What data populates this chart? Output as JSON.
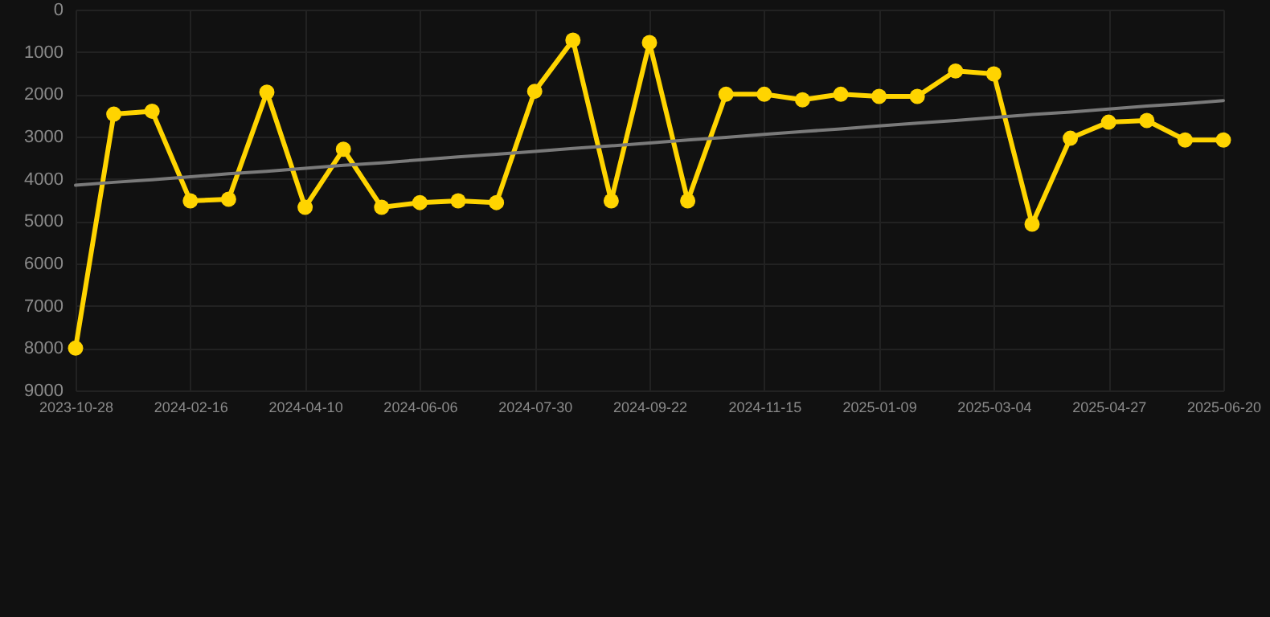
{
  "chart_data": {
    "type": "line",
    "categories": [
      "2023-10-28",
      null,
      null,
      "2024-02-16",
      null,
      null,
      "2024-04-10",
      null,
      null,
      "2024-06-06",
      null,
      null,
      "2024-07-30",
      null,
      null,
      "2024-09-22",
      null,
      null,
      "2024-11-15",
      null,
      null,
      "2025-01-09",
      null,
      null,
      "2025-03-04",
      null,
      null,
      "2025-04-27",
      null,
      null,
      "2025-06-20"
    ],
    "series": [
      {
        "color": "#ffd400",
        "marker": "circle",
        "values": [
          8000,
          2470,
          2400,
          4520,
          4480,
          1950,
          4670,
          3300,
          4670,
          4560,
          4520,
          4560,
          1930,
          720,
          4520,
          780,
          4520,
          2000,
          2000,
          2130,
          2000,
          2050,
          2050,
          1450,
          1520,
          5070,
          3040,
          2660,
          2620,
          3080,
          3080
        ]
      },
      {
        "type": "line",
        "color": "#7a7a7a",
        "marker": "none",
        "values": [
          4150,
          4080,
          4020,
          3950,
          3880,
          3820,
          3750,
          3680,
          3620,
          3550,
          3480,
          3420,
          3350,
          3280,
          3220,
          3150,
          3080,
          3020,
          2950,
          2880,
          2820,
          2750,
          2680,
          2620,
          2550,
          2480,
          2420,
          2350,
          2280,
          2220,
          2150
        ]
      }
    ],
    "ylim": [
      9000,
      0
    ],
    "yticks": [
      0,
      1000,
      2000,
      3000,
      4000,
      5000,
      6000,
      7000,
      8000,
      9000
    ],
    "grid": true,
    "legend": false
  }
}
